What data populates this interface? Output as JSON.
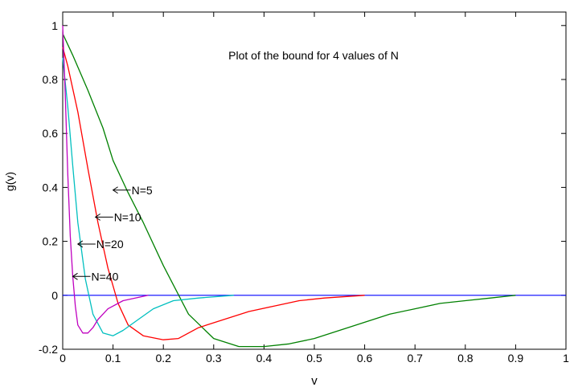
{
  "chart_data": {
    "type": "line",
    "title": "Plot of the bound for 4 values of N",
    "xlabel": "v",
    "ylabel": "g(v)",
    "xlim": [
      0,
      1
    ],
    "ylim": [
      -0.2,
      1.05
    ],
    "grid": false,
    "x_ticks": [
      0,
      0.1,
      0.2,
      0.3,
      0.4,
      0.5,
      0.6,
      0.7,
      0.8,
      0.9,
      1
    ],
    "x_tick_labels": [
      "0",
      "0.1",
      "0.2",
      "0.3",
      "0.4",
      "0.5",
      "0.6",
      "0.7",
      "0.8",
      "0.9",
      "1"
    ],
    "y_ticks": [
      -0.2,
      0,
      0.2,
      0.4,
      0.6,
      0.8,
      1
    ],
    "y_tick_labels": [
      "-0.2",
      "0",
      "0.2",
      "0.4",
      "0.6",
      "0.8",
      "1"
    ],
    "baseline": {
      "y": 0,
      "color": "#0000ff"
    },
    "series": [
      {
        "key": "n5",
        "color": "#008000",
        "x": [
          0,
          0.02,
          0.05,
          0.08,
          0.1,
          0.13,
          0.16,
          0.2,
          0.25,
          0.3,
          0.35,
          0.4,
          0.45,
          0.5,
          0.55,
          0.6,
          0.65,
          0.7,
          0.75,
          0.8,
          0.85,
          0.9
        ],
        "y": [
          0.97,
          0.89,
          0.76,
          0.62,
          0.5,
          0.38,
          0.27,
          0.11,
          -0.07,
          -0.16,
          -0.19,
          -0.19,
          -0.18,
          -0.16,
          -0.13,
          -0.1,
          -0.07,
          -0.05,
          -0.03,
          -0.02,
          -0.01,
          0
        ]
      },
      {
        "key": "n10",
        "color": "#ff0000",
        "x": [
          0,
          0.01,
          0.03,
          0.05,
          0.07,
          0.09,
          0.11,
          0.13,
          0.16,
          0.2,
          0.23,
          0.27,
          0.32,
          0.37,
          0.42,
          0.47,
          0.52,
          0.6
        ],
        "y": [
          0.92,
          0.85,
          0.68,
          0.47,
          0.27,
          0.1,
          -0.03,
          -0.11,
          -0.15,
          -0.165,
          -0.16,
          -0.12,
          -0.09,
          -0.06,
          -0.04,
          -0.02,
          -0.01,
          0
        ]
      },
      {
        "key": "n20",
        "color": "#00bfbf",
        "x": [
          0,
          0.01,
          0.02,
          0.03,
          0.045,
          0.06,
          0.08,
          0.1,
          0.12,
          0.15,
          0.18,
          0.22,
          0.27,
          0.34
        ],
        "y": [
          0.88,
          0.7,
          0.48,
          0.27,
          0.06,
          -0.07,
          -0.14,
          -0.15,
          -0.13,
          -0.09,
          -0.05,
          -0.02,
          -0.01,
          0
        ]
      },
      {
        "key": "n40",
        "color": "#bf00bf",
        "x": [
          0,
          0.005,
          0.01,
          0.015,
          0.02,
          0.025,
          0.03,
          0.04,
          0.05,
          0.06,
          0.07,
          0.09,
          0.12,
          0.17
        ],
        "y": [
          1.0,
          0.75,
          0.45,
          0.22,
          0.07,
          -0.04,
          -0.11,
          -0.14,
          -0.14,
          -0.12,
          -0.09,
          -0.05,
          -0.02,
          0
        ]
      }
    ],
    "annotations": [
      {
        "text": "N=5",
        "x": 0.1,
        "y": 0.39
      },
      {
        "text": "N=10",
        "x": 0.065,
        "y": 0.29
      },
      {
        "text": "N=20",
        "x": 0.03,
        "y": 0.19
      },
      {
        "text": "N=40",
        "x": 0.02,
        "y": 0.07
      }
    ]
  }
}
